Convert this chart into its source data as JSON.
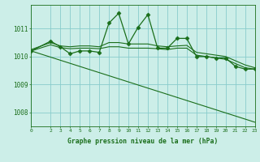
{
  "background_color": "#cceee8",
  "line_color": "#1a6e1a",
  "grid_color": "#88cccc",
  "xlabel": "Graphe pression niveau de la mer (hPa)",
  "xlim": [
    0,
    23
  ],
  "ylim": [
    1007.5,
    1011.85
  ],
  "yticks": [
    1008,
    1009,
    1010,
    1011
  ],
  "xticks": [
    0,
    2,
    3,
    4,
    5,
    6,
    7,
    8,
    9,
    10,
    11,
    12,
    13,
    14,
    15,
    16,
    17,
    18,
    19,
    20,
    21,
    22,
    23
  ],
  "series": [
    {
      "x": [
        0,
        2,
        3,
        4,
        5,
        6,
        7,
        8,
        9,
        10,
        11,
        12,
        13,
        14,
        15,
        16,
        17,
        18,
        19,
        20,
        21,
        22,
        23
      ],
      "y": [
        1010.2,
        1010.55,
        1010.35,
        1010.1,
        1010.2,
        1010.2,
        1010.15,
        1011.2,
        1011.55,
        1010.45,
        1011.05,
        1011.5,
        1010.3,
        1010.3,
        1010.65,
        1010.65,
        1010.0,
        1010.0,
        1009.95,
        1009.95,
        1009.65,
        1009.55,
        1009.55
      ],
      "marker": "D",
      "marker_size": 2.5,
      "linewidth": 0.9
    },
    {
      "x": [
        0,
        2,
        3,
        4,
        5,
        6,
        7,
        8,
        9,
        10,
        11,
        12,
        13,
        14,
        15,
        16,
        17,
        18,
        19,
        20,
        21,
        22,
        23
      ],
      "y": [
        1010.25,
        1010.5,
        1010.38,
        1010.35,
        1010.38,
        1010.38,
        1010.35,
        1010.5,
        1010.5,
        1010.45,
        1010.45,
        1010.45,
        1010.38,
        1010.35,
        1010.38,
        1010.4,
        1010.15,
        1010.1,
        1010.05,
        1010.0,
        1009.85,
        1009.7,
        1009.6
      ],
      "marker": null,
      "linewidth": 0.8
    },
    {
      "x": [
        0,
        2,
        3,
        4,
        5,
        6,
        7,
        8,
        9,
        10,
        11,
        12,
        13,
        14,
        15,
        16,
        17,
        18,
        19,
        20,
        21,
        22,
        23
      ],
      "y": [
        1010.2,
        1010.42,
        1010.32,
        1010.28,
        1010.3,
        1010.3,
        1010.28,
        1010.35,
        1010.35,
        1010.3,
        1010.3,
        1010.3,
        1010.28,
        1010.25,
        1010.3,
        1010.3,
        1010.05,
        1010.0,
        1009.95,
        1009.9,
        1009.75,
        1009.6,
        1009.55
      ],
      "marker": null,
      "linewidth": 0.8
    },
    {
      "x": [
        0,
        23
      ],
      "y": [
        1010.2,
        1007.65
      ],
      "marker": null,
      "linewidth": 0.8
    }
  ]
}
